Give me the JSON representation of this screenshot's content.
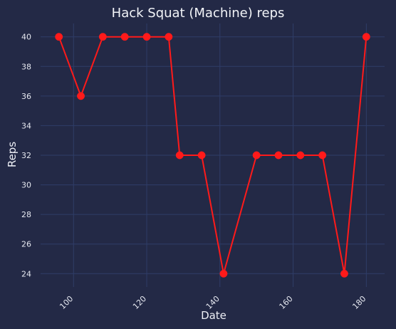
{
  "chart_data": {
    "type": "line",
    "title": "Hack Squat (Machine) reps",
    "xlabel": "Date",
    "ylabel": "Reps",
    "x": [
      96,
      102,
      108,
      114,
      120,
      126,
      129,
      135,
      141,
      150,
      156,
      162,
      168,
      174,
      180
    ],
    "series": [
      {
        "values": [
          40,
          36,
          40,
          40,
          40,
          40,
          32,
          32,
          24,
          32,
          32,
          32,
          32,
          24,
          40
        ]
      }
    ],
    "xlim": [
      91,
      185
    ],
    "ylim": [
      23.1,
      40.9
    ],
    "xticks": [
      100,
      120,
      140,
      160,
      180
    ],
    "yticks": [
      24,
      26,
      28,
      30,
      32,
      34,
      36,
      38,
      40
    ],
    "grid": true,
    "marker": "circle",
    "colors": {
      "background": "#232946",
      "line": "#ff1a1a",
      "grid": "#2f3d68",
      "text": "#e6e8f0"
    }
  }
}
